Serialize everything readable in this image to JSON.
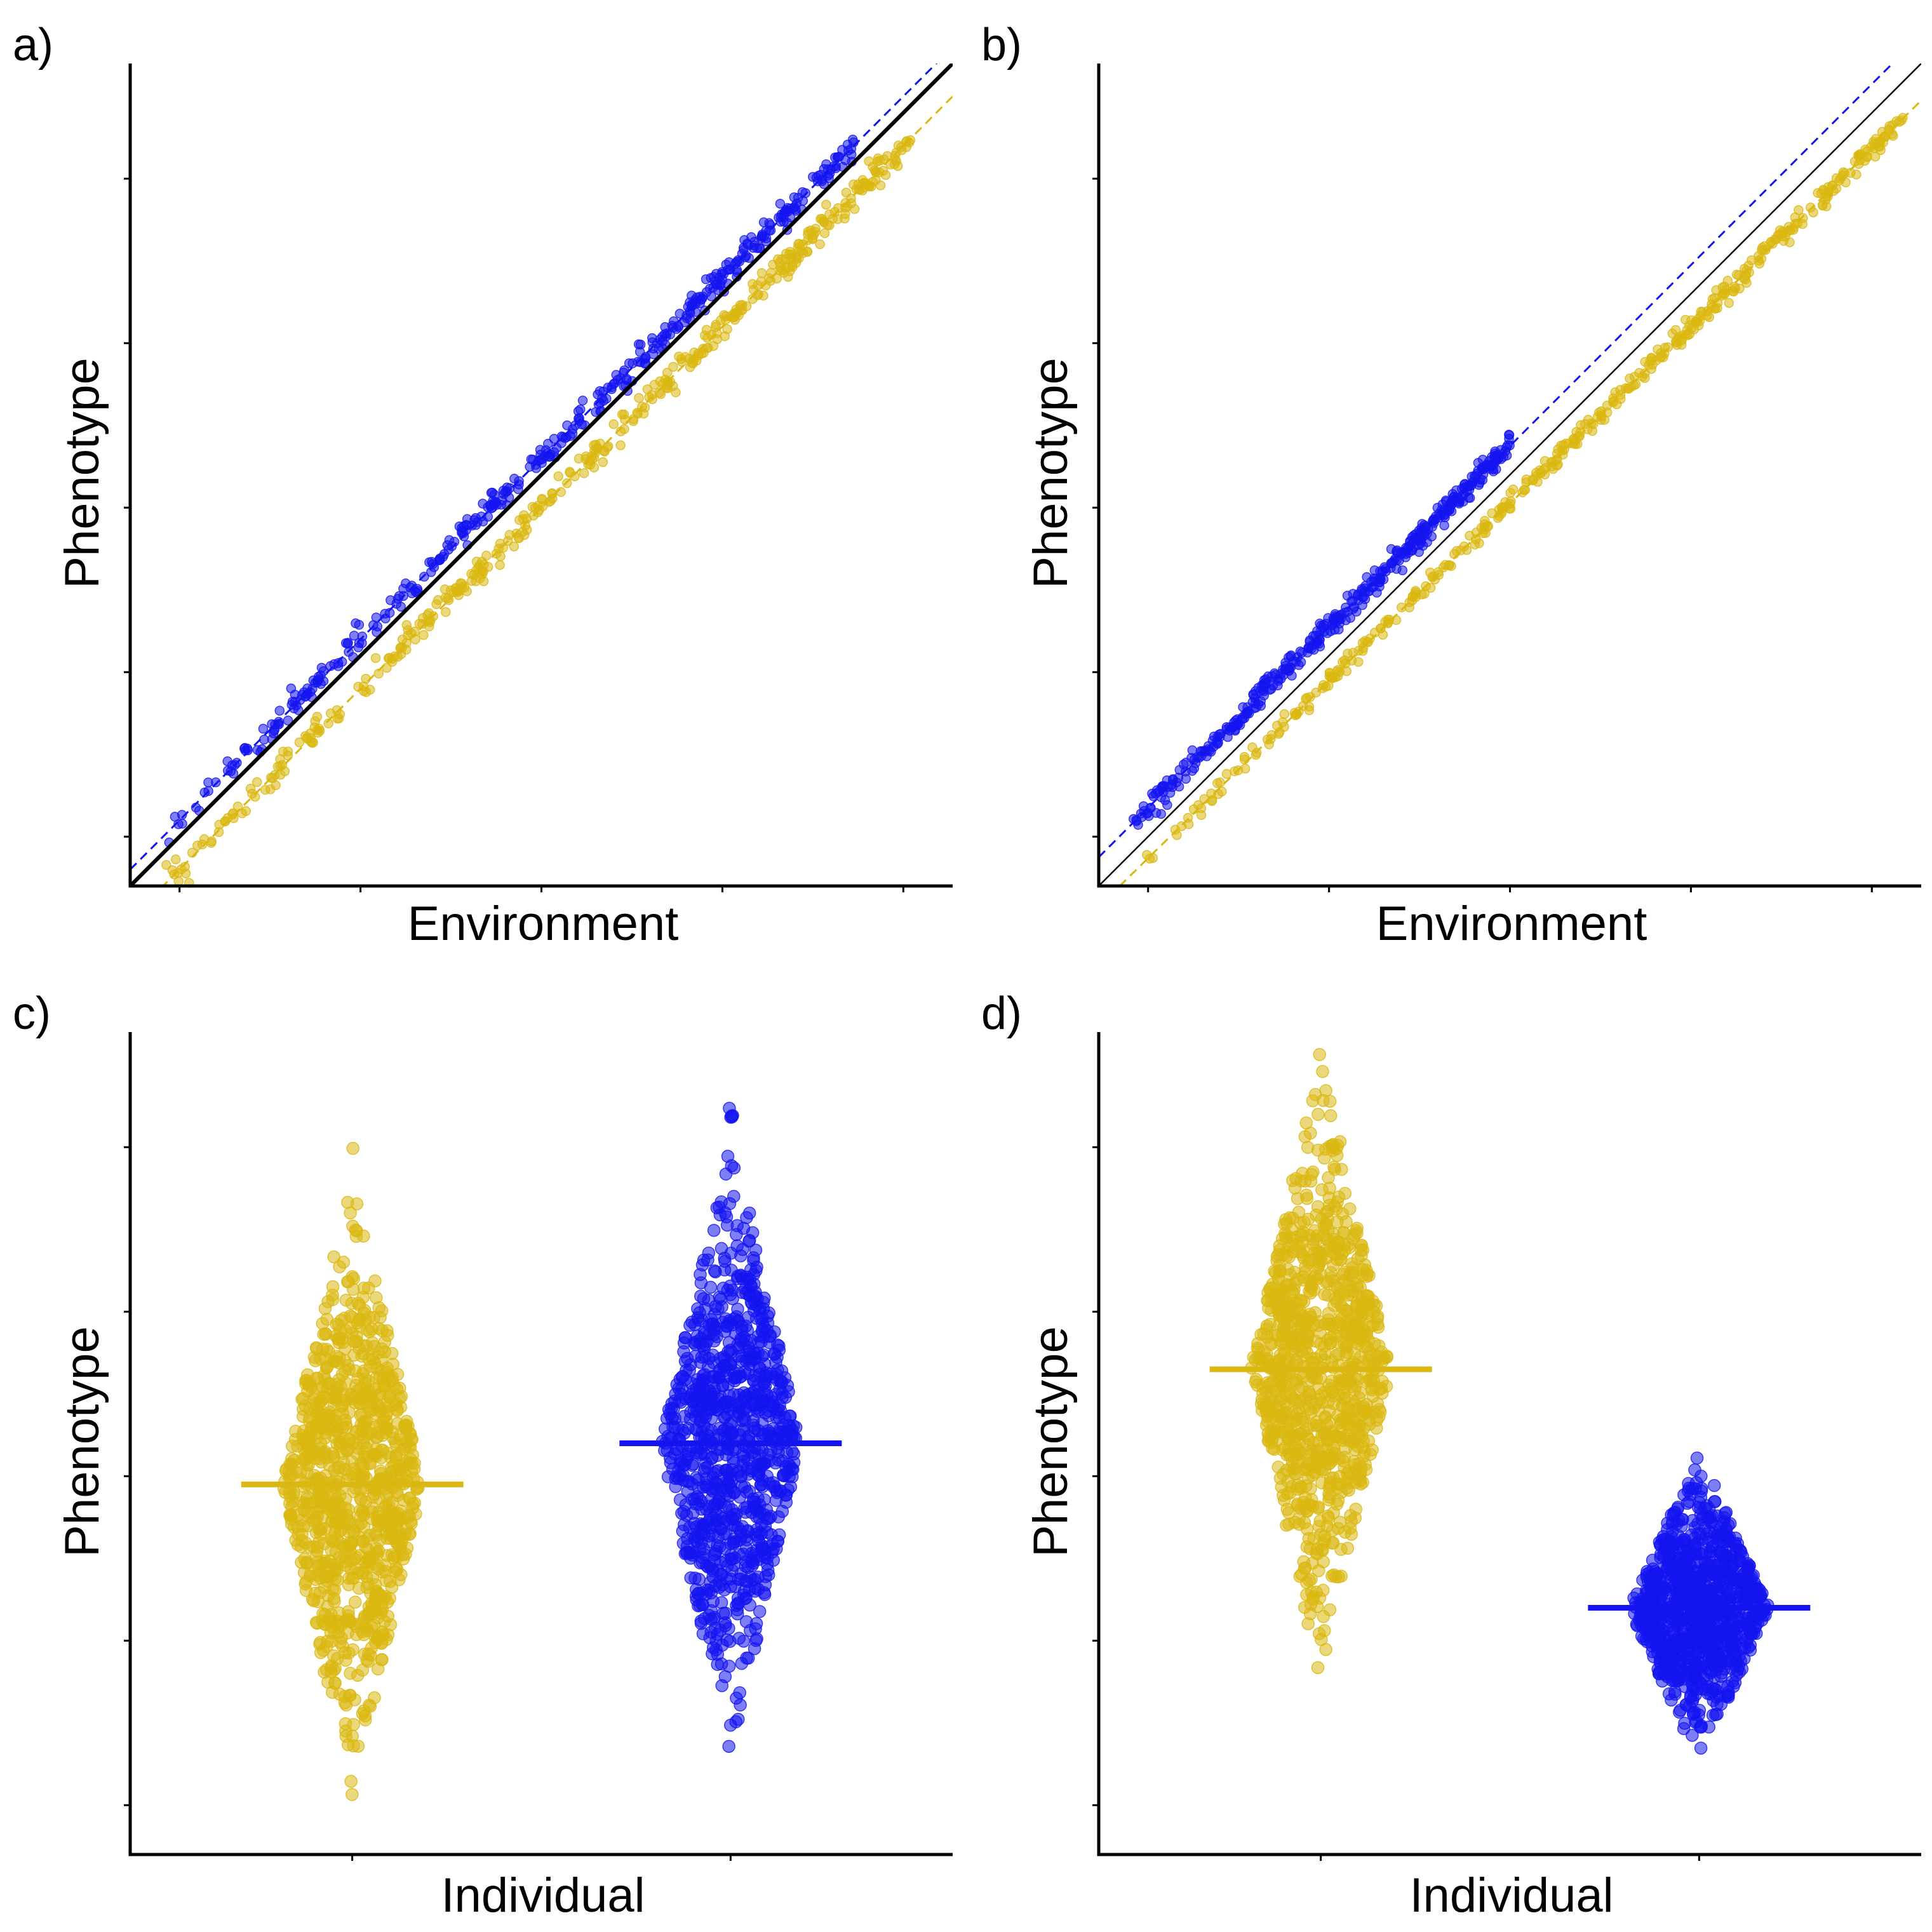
{
  "colors": {
    "yellow": "#DAB811",
    "blue": "#1414F0",
    "axis": "#000000"
  },
  "chart_data": [
    {
      "panel": "a)",
      "type": "scatter",
      "xlabel": "Environment",
      "ylabel": "Phenotype",
      "xlim": [
        0,
        100
      ],
      "ylim": [
        0,
        100
      ],
      "tick_labels": "none",
      "series": [
        {
          "color": "yellow",
          "n_points": 420,
          "x_range": [
            4,
            95
          ],
          "slope": 1.0,
          "intercept": -4,
          "noise": 0.8,
          "fit": {
            "slope": 1.0,
            "intercept": -4,
            "style": "dashed"
          }
        },
        {
          "color": "blue",
          "n_points": 420,
          "x_range": [
            4,
            88
          ],
          "slope": 1.0,
          "intercept": 2,
          "noise": 0.8,
          "fit": {
            "slope": 1.0,
            "intercept": 2,
            "style": "dashed"
          }
        }
      ],
      "reference_line": {
        "slope": 1.0,
        "intercept": 0,
        "style": "solid",
        "width": "thick"
      }
    },
    {
      "panel": "b)",
      "type": "scatter",
      "xlabel": "Environment",
      "ylabel": "Phenotype",
      "xlim": [
        0,
        100
      ],
      "ylim": [
        0,
        100
      ],
      "tick_labels": "none",
      "series": [
        {
          "color": "yellow",
          "n_points": 420,
          "x_range": [
            5,
            98
          ],
          "slope": 0.98,
          "intercept": -2.5,
          "noise": 0.6,
          "fit": {
            "slope": 0.98,
            "intercept": -2.5,
            "style": "dashed"
          }
        },
        {
          "color": "blue",
          "n_points": 420,
          "x_range": [
            4,
            50
          ],
          "slope": 1.0,
          "intercept": 3.5,
          "noise": 0.7,
          "fit": {
            "slope": 1.0,
            "intercept": 3.5,
            "style": "dashed"
          }
        }
      ],
      "reference_line": {
        "slope": 1.0,
        "intercept": 0,
        "style": "solid",
        "width": "thin"
      }
    },
    {
      "panel": "c)",
      "type": "scatter",
      "xlabel": "Individual",
      "ylabel": "Phenotype",
      "ylim": [
        0,
        100
      ],
      "tick_labels": "none",
      "groups": [
        {
          "color": "yellow",
          "x_position": 0.27,
          "n_points": 1000,
          "mean": 45,
          "sd": 12,
          "min": 5,
          "max": 95,
          "mean_line": 45
        },
        {
          "color": "blue",
          "x_position": 0.73,
          "n_points": 1000,
          "mean": 50,
          "sd": 12,
          "min": 5,
          "max": 92,
          "mean_line": 50
        }
      ]
    },
    {
      "panel": "d)",
      "type": "scatter",
      "xlabel": "Individual",
      "ylabel": "Phenotype",
      "ylim": [
        0,
        100
      ],
      "tick_labels": "none",
      "groups": [
        {
          "color": "yellow",
          "x_position": 0.27,
          "n_points": 1000,
          "mean": 59,
          "sd": 12,
          "min": 5,
          "max": 98,
          "mean_line": 59
        },
        {
          "color": "blue",
          "x_position": 0.73,
          "n_points": 1000,
          "mean": 30,
          "sd": 6,
          "min": 12,
          "max": 60,
          "mean_line": 30
        }
      ]
    }
  ]
}
